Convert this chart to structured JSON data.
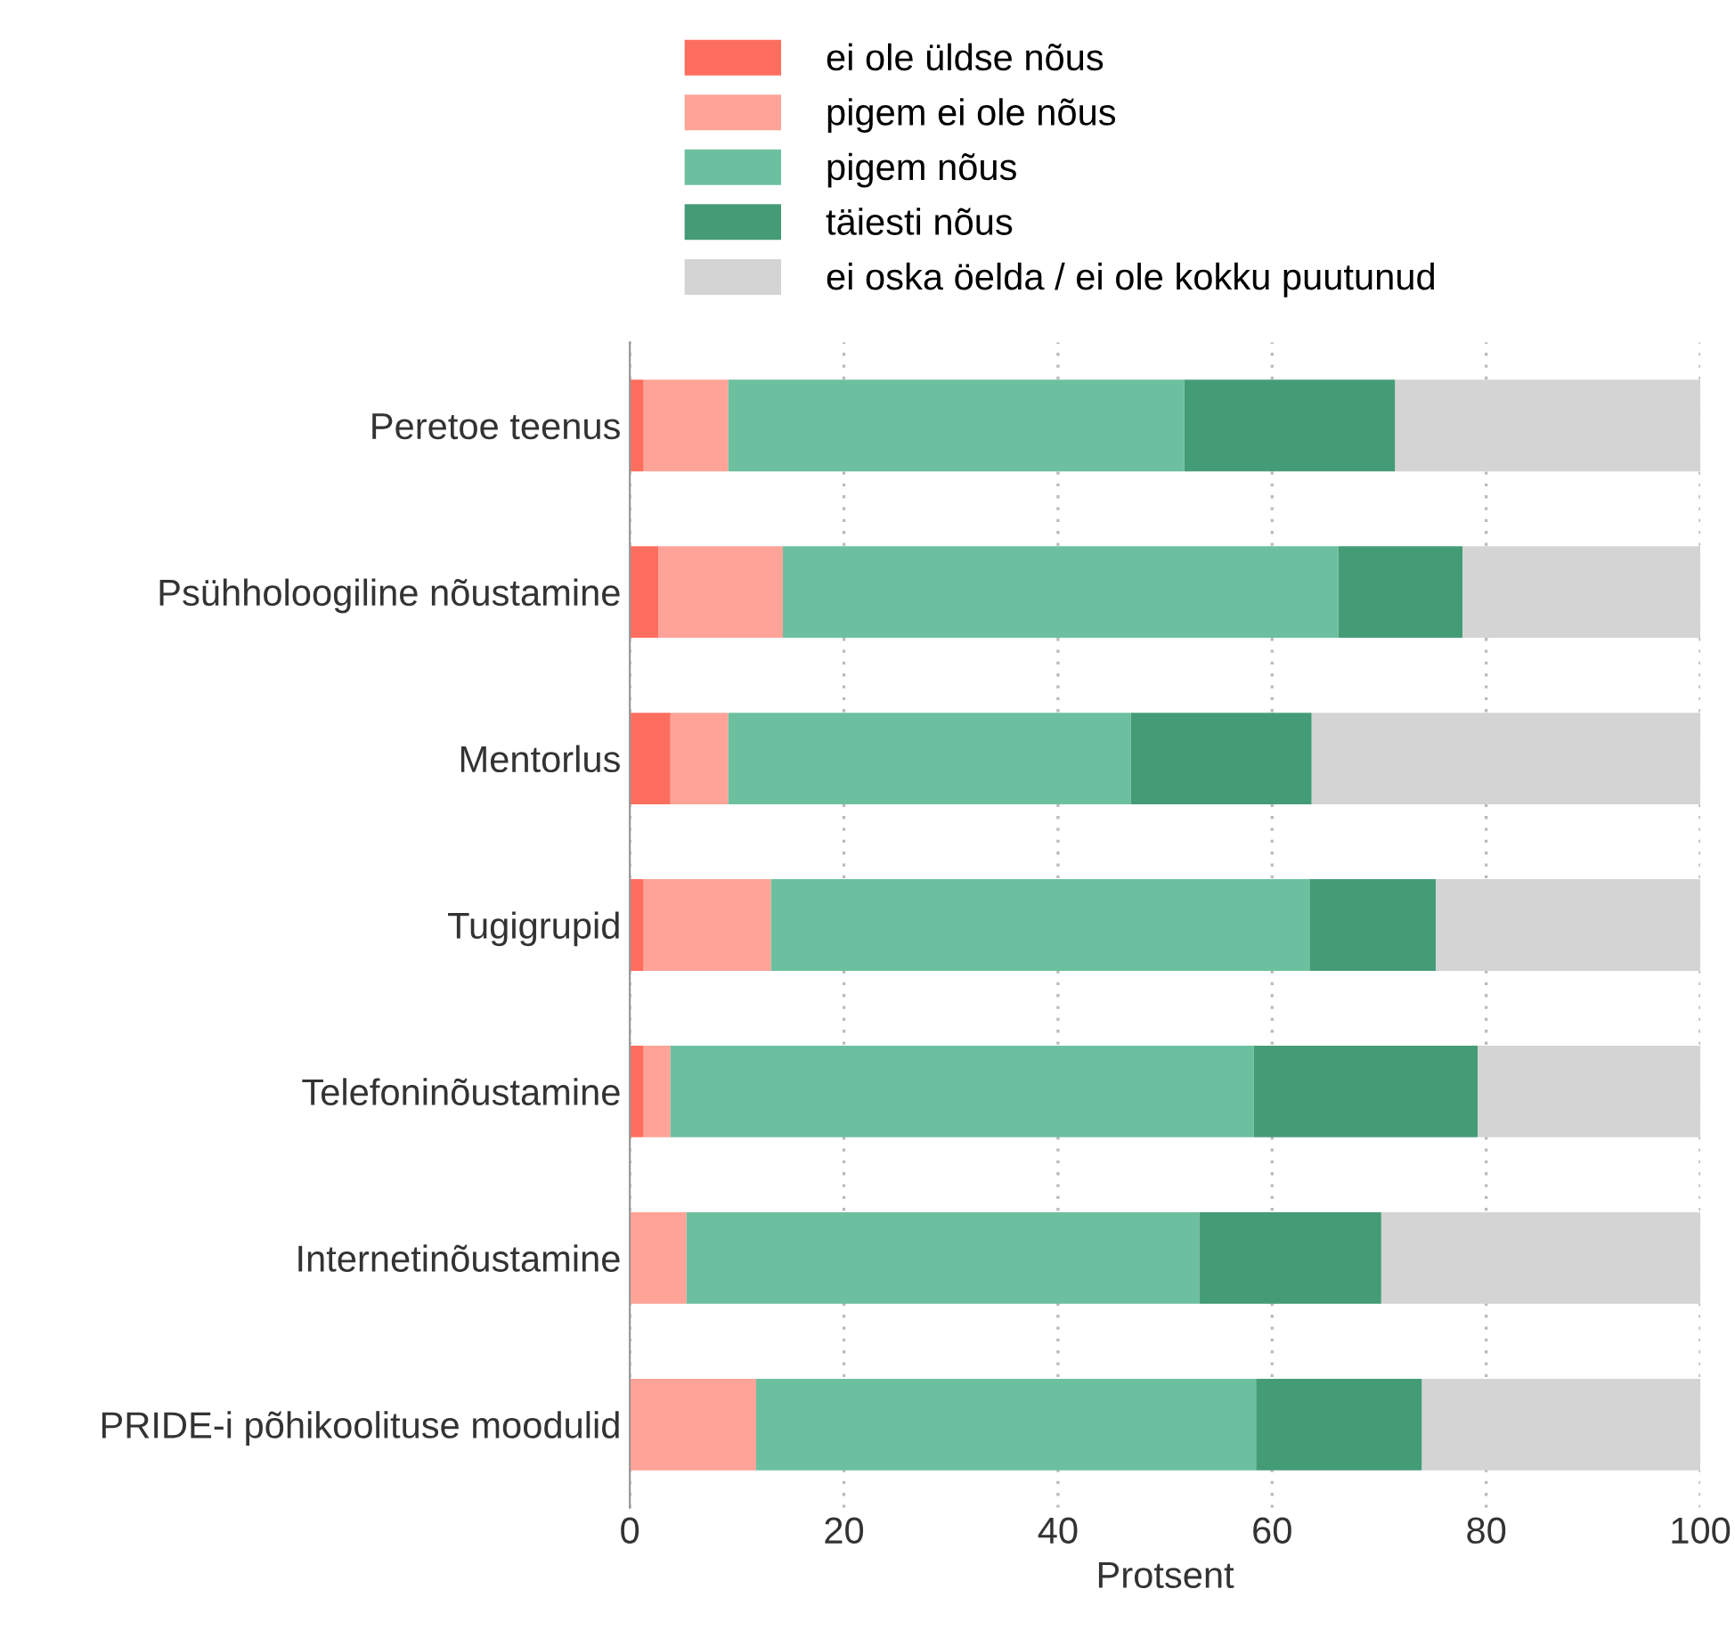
{
  "chart_data": {
    "type": "bar",
    "orientation": "horizontal",
    "stacked": true,
    "xlabel": "Protsent",
    "categories": [
      "Peretoe teenus",
      "Psühholoogiline nõustamine",
      "Mentorlus",
      "Tugigrupid",
      "Telefoninõustamine",
      "Internetinõustamine",
      "PRIDE-i põhikoolituse moodulid"
    ],
    "series": [
      {
        "name": "ei ole üldse nõus",
        "color": "#fe6e5f",
        "values": [
          1.3,
          2.7,
          3.8,
          1.3,
          1.3,
          0,
          0
        ]
      },
      {
        "name": "pigem ei ole nõus",
        "color": "#fea398",
        "values": [
          7.9,
          11.6,
          5.4,
          11.9,
          2.5,
          5.3,
          11.8
        ]
      },
      {
        "name": "pigem nõus",
        "color": "#6cc09f",
        "values": [
          42.6,
          51.9,
          37.6,
          50.3,
          54.5,
          47.9,
          46.7
        ]
      },
      {
        "name": "täiesti nõus",
        "color": "#449c77",
        "values": [
          19.7,
          11.6,
          16.9,
          11.8,
          20.9,
          17.0,
          15.5
        ]
      },
      {
        "name": "ei oska öelda / ei ole kokku puutunud",
        "color": "#d4d4d4",
        "values": [
          28.5,
          22.2,
          36.3,
          24.7,
          20.8,
          29.8,
          26.0
        ]
      }
    ],
    "xlim": [
      0,
      100
    ],
    "xticks": [
      0,
      20,
      40,
      60,
      80,
      100
    ],
    "grid": "x",
    "legend": "top"
  }
}
